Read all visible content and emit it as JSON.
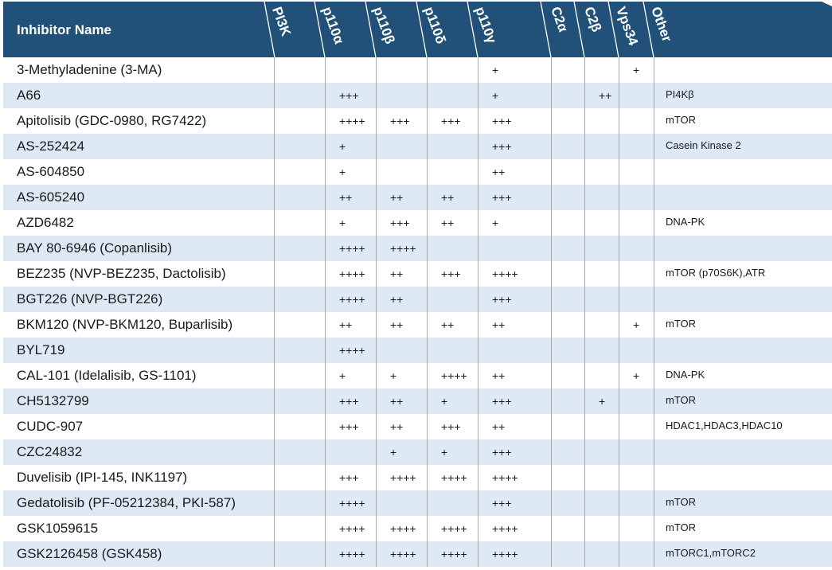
{
  "header": {
    "title": "Inhibitor Name",
    "columns": [
      "PI3K",
      "p110α",
      "p110β",
      "p110δ",
      "p110γ",
      "C2α",
      "C2β",
      "Vps34",
      "Other"
    ]
  },
  "colors": {
    "header_bg": "#215079",
    "row_alt": "#dde9f5",
    "grid": "#a9a9a9"
  },
  "rows": [
    {
      "name": "3-Methyladenine (3-MA)",
      "cells": [
        "",
        "",
        "",
        "",
        "+",
        "",
        "",
        "+",
        ""
      ]
    },
    {
      "name": "A66",
      "cells": [
        "",
        "+++",
        "",
        "",
        "+",
        "",
        "++",
        "",
        "PI4Kβ"
      ]
    },
    {
      "name": "Apitolisib (GDC-0980, RG7422)",
      "cells": [
        "",
        "++++",
        "+++",
        "+++",
        "+++",
        "",
        "",
        "",
        "mTOR"
      ]
    },
    {
      "name": "AS-252424",
      "cells": [
        "",
        "+",
        "",
        "",
        "+++",
        "",
        "",
        "",
        "Casein Kinase 2"
      ]
    },
    {
      "name": "AS-604850",
      "cells": [
        "",
        "+",
        "",
        "",
        "++",
        "",
        "",
        "",
        ""
      ]
    },
    {
      "name": "AS-605240",
      "cells": [
        "",
        "++",
        "++",
        "++",
        "+++",
        "",
        "",
        "",
        ""
      ]
    },
    {
      "name": "AZD6482",
      "cells": [
        "",
        "+",
        "+++",
        "++",
        "+",
        "",
        "",
        "",
        "DNA-PK"
      ]
    },
    {
      "name": "BAY 80-6946 (Copanlisib)",
      "cells": [
        "",
        "++++",
        "++++",
        "",
        "",
        "",
        "",
        "",
        ""
      ]
    },
    {
      "name": "BEZ235 (NVP-BEZ235, Dactolisib)",
      "cells": [
        "",
        "++++",
        "++",
        "+++",
        "++++",
        "",
        "",
        "",
        "mTOR (p70S6K),ATR"
      ]
    },
    {
      "name": "BGT226 (NVP-BGT226)",
      "cells": [
        "",
        "++++",
        "++",
        "",
        "+++",
        "",
        "",
        "",
        ""
      ]
    },
    {
      "name": "BKM120 (NVP-BKM120, Buparlisib)",
      "cells": [
        "",
        "++",
        "++",
        "++",
        "++",
        "",
        "",
        "+",
        "mTOR"
      ]
    },
    {
      "name": "BYL719",
      "cells": [
        "",
        "++++",
        "",
        "",
        "",
        "",
        "",
        "",
        ""
      ]
    },
    {
      "name": "CAL-101 (Idelalisib, GS-1101)",
      "cells": [
        "",
        "+",
        "+",
        "++++",
        "++",
        "",
        "",
        "+",
        "DNA-PK"
      ]
    },
    {
      "name": "CH5132799",
      "cells": [
        "",
        "+++",
        "++",
        "+",
        "+++",
        "",
        "+",
        "",
        "mTOR"
      ]
    },
    {
      "name": "CUDC-907",
      "cells": [
        "",
        "+++",
        "++",
        "+++",
        "++",
        "",
        "",
        "",
        "HDAC1,HDAC3,HDAC10"
      ]
    },
    {
      "name": "CZC24832",
      "cells": [
        "",
        "",
        "+",
        "+",
        "+++",
        "",
        "",
        "",
        ""
      ]
    },
    {
      "name": "Duvelisib (IPI-145, INK1197)",
      "cells": [
        "",
        "+++",
        "++++",
        "++++",
        "++++",
        "",
        "",
        "",
        ""
      ]
    },
    {
      "name": "Gedatolisib (PF-05212384, PKI-587)",
      "cells": [
        "",
        "++++",
        "",
        "",
        "+++",
        "",
        "",
        "",
        "mTOR"
      ]
    },
    {
      "name": "GSK1059615",
      "cells": [
        "",
        "++++",
        "++++",
        "++++",
        "++++",
        "",
        "",
        "",
        "mTOR"
      ]
    },
    {
      "name": "GSK2126458 (GSK458)",
      "cells": [
        "",
        "++++",
        "++++",
        "++++",
        "++++",
        "",
        "",
        "",
        "mTORC1,mTORC2"
      ]
    }
  ]
}
